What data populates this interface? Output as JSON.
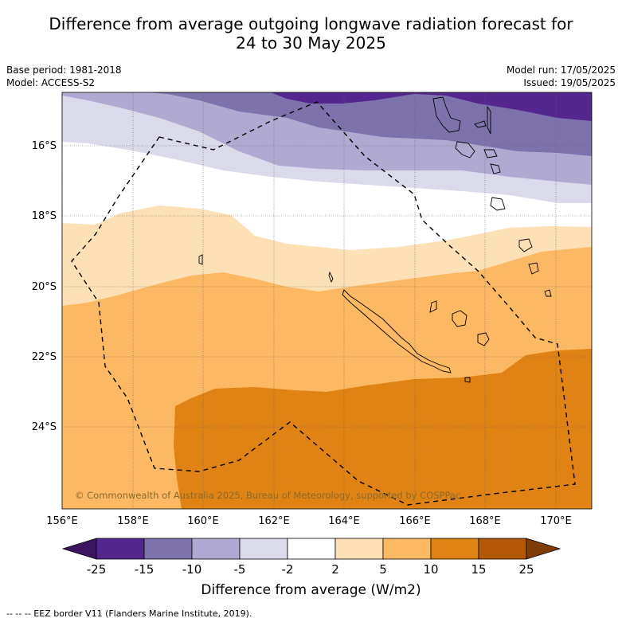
{
  "header": {
    "title_line1": "Difference from average outgoing longwave radiation forecast for",
    "title_line2": "24 to 30 May 2025",
    "base_period": "Base period: 1981-2018",
    "model": "Model: ACCESS-S2",
    "model_run": "Model run: 17/05/2025",
    "issued": "Issued: 19/05/2025"
  },
  "map": {
    "lat_labels": [
      "16°S",
      "18°S",
      "20°S",
      "22°S",
      "24°S"
    ],
    "lon_labels": [
      "156°E",
      "158°E",
      "160°E",
      "162°E",
      "164°E",
      "166°E",
      "168°E",
      "170°E"
    ],
    "copyright": "© Commonwealth of Australia 2025, Bureau of Meteorology, supported by COSPPac"
  },
  "colorbar": {
    "tick_labels": [
      "-25",
      "-15",
      "-10",
      "-5",
      "-2",
      "2",
      "5",
      "10",
      "15",
      "25"
    ],
    "colors": [
      "#3b1560",
      "#54278f",
      "#7e72ad",
      "#b0aad2",
      "#dadaeb",
      "#ffffff",
      "#fee0b6",
      "#fdb863",
      "#e08214",
      "#b35806",
      "#7f3b08"
    ],
    "title": "Difference from average (W/m2)"
  },
  "footer": {
    "legend": "--  --  -- EEZ border V11 (Flanders Marine Institute, 2019)."
  }
}
